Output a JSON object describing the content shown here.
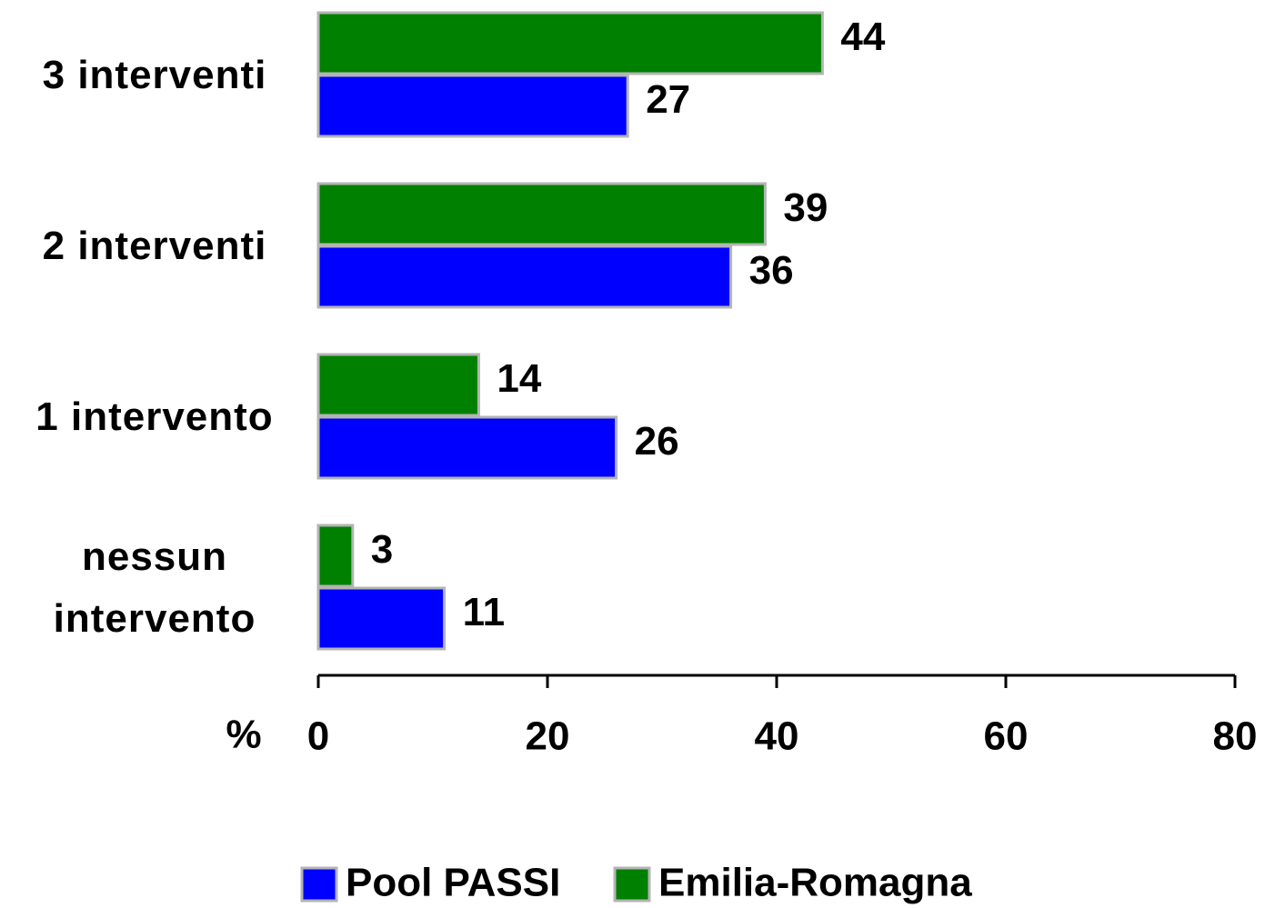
{
  "chart_data": {
    "type": "bar",
    "orientation": "horizontal",
    "categories": [
      "3 interventi",
      "2 interventi",
      "1 intervento",
      "nessun intervento"
    ],
    "series": [
      {
        "name": "Pool PASSI",
        "color": "#0000ff",
        "values": [
          27,
          36,
          26,
          11
        ]
      },
      {
        "name": "Emilia-Romagna",
        "color": "#008000",
        "values": [
          44,
          39,
          14,
          3
        ]
      }
    ],
    "xlabel": "%",
    "xlim": [
      0,
      80
    ],
    "xticks": [
      0,
      20,
      40,
      60,
      80
    ],
    "legend": "bottom"
  }
}
